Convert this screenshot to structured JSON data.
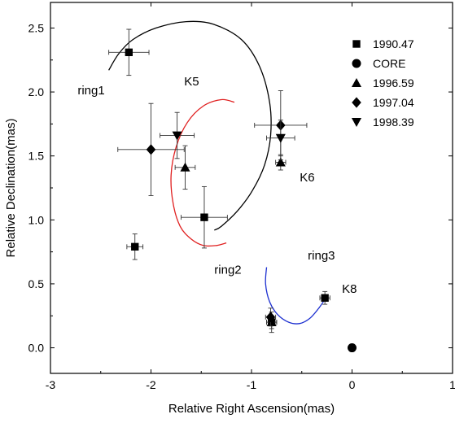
{
  "chart_data": {
    "type": "scatter",
    "title": "",
    "xlabel": "Relative Right Ascension(mas)",
    "ylabel": "Relative Declination(mas)",
    "xlim": [
      -3,
      1
    ],
    "ylim": [
      -0.2,
      2.7
    ],
    "xticks": [
      -3,
      -2,
      -1,
      0,
      1
    ],
    "yticks": [
      0.0,
      0.5,
      1.0,
      1.5,
      2.0,
      2.5
    ],
    "xtick_labels": [
      "-3",
      "-2",
      "-1",
      "0",
      "1"
    ],
    "ytick_labels": [
      "0.0",
      "0.5",
      "1.0",
      "1.5",
      "2.0",
      "2.5"
    ],
    "legend": {
      "placement": "top-right",
      "entries": [
        {
          "label": "1990.47",
          "marker": "square"
        },
        {
          "label": "CORE",
          "marker": "circle"
        },
        {
          "label": "1996.59",
          "marker": "triangle-up"
        },
        {
          "label": "1997.04",
          "marker": "diamond"
        },
        {
          "label": "1998.39",
          "marker": "triangle-down"
        }
      ]
    },
    "series": [
      {
        "name": "1990.47",
        "marker": "square",
        "points": [
          {
            "x": -2.22,
            "y": 2.31,
            "xerr": 0.2,
            "yerr": 0.18
          },
          {
            "x": -1.47,
            "y": 1.02,
            "xerr": 0.23,
            "yerr": 0.24
          },
          {
            "x": -2.16,
            "y": 0.79,
            "xerr": 0.08,
            "yerr": 0.1
          },
          {
            "x": -0.27,
            "y": 0.39,
            "xerr": 0.05,
            "yerr": 0.05
          },
          {
            "x": -0.8,
            "y": 0.2,
            "xerr": 0.05,
            "yerr": 0.05
          }
        ]
      },
      {
        "name": "CORE",
        "marker": "circle",
        "points": [
          {
            "x": 0.0,
            "y": 0.0
          }
        ]
      },
      {
        "name": "1996.59",
        "marker": "triangle-up",
        "points": [
          {
            "x": -1.66,
            "y": 1.41,
            "xerr": 0.1,
            "yerr": 0.17
          },
          {
            "x": -0.71,
            "y": 1.45,
            "xerr": 0.05,
            "yerr": 0.06
          },
          {
            "x": -0.8,
            "y": 0.2,
            "xerr": 0.05,
            "yerr": 0.08
          }
        ]
      },
      {
        "name": "1997.04",
        "marker": "diamond",
        "points": [
          {
            "x": -2.0,
            "y": 1.55,
            "xerr": 0.33,
            "yerr": 0.36
          },
          {
            "x": -0.71,
            "y": 1.74,
            "xerr": 0.26,
            "yerr": 0.27
          },
          {
            "x": -0.81,
            "y": 0.24,
            "xerr": 0.05,
            "yerr": 0.07
          }
        ]
      },
      {
        "name": "1998.39",
        "marker": "triangle-down",
        "points": [
          {
            "x": -1.74,
            "y": 1.66,
            "xerr": 0.17,
            "yerr": 0.18
          },
          {
            "x": -0.71,
            "y": 1.64,
            "xerr": 0.14,
            "yerr": 0.14
          }
        ]
      }
    ],
    "rings": [
      {
        "label": "ring1",
        "color": "#000000",
        "points": [
          [
            -2.42,
            2.17
          ],
          [
            -2.32,
            2.3
          ],
          [
            -2.18,
            2.41
          ],
          [
            -1.95,
            2.5
          ],
          [
            -1.65,
            2.55
          ],
          [
            -1.38,
            2.53
          ],
          [
            -1.1,
            2.41
          ],
          [
            -0.92,
            2.2
          ],
          [
            -0.82,
            1.92
          ],
          [
            -0.81,
            1.66
          ],
          [
            -0.87,
            1.43
          ],
          [
            -0.99,
            1.23
          ],
          [
            -1.14,
            1.07
          ],
          [
            -1.3,
            0.95
          ],
          [
            -1.37,
            0.92
          ]
        ]
      },
      {
        "label": "ring2",
        "color": "#e02020",
        "points": [
          [
            -1.17,
            1.92
          ],
          [
            -1.3,
            1.94
          ],
          [
            -1.48,
            1.89
          ],
          [
            -1.64,
            1.76
          ],
          [
            -1.75,
            1.57
          ],
          [
            -1.8,
            1.35
          ],
          [
            -1.78,
            1.13
          ],
          [
            -1.71,
            0.95
          ],
          [
            -1.6,
            0.85
          ],
          [
            -1.48,
            0.8
          ],
          [
            -1.35,
            0.8
          ],
          [
            -1.25,
            0.82
          ]
        ]
      },
      {
        "label": "ring3",
        "color": "#1c2fd0",
        "points": [
          [
            -0.85,
            0.63
          ],
          [
            -0.86,
            0.5
          ],
          [
            -0.82,
            0.36
          ],
          [
            -0.74,
            0.26
          ],
          [
            -0.63,
            0.2
          ],
          [
            -0.52,
            0.19
          ],
          [
            -0.42,
            0.23
          ],
          [
            -0.33,
            0.31
          ],
          [
            -0.27,
            0.38
          ]
        ]
      }
    ],
    "annotations": [
      {
        "text": "ring1",
        "x": -2.73,
        "y": 1.98
      },
      {
        "text": "K5",
        "x": -1.67,
        "y": 2.05
      },
      {
        "text": "K6",
        "x": -0.52,
        "y": 1.3
      },
      {
        "text": "ring2",
        "x": -1.37,
        "y": 0.58
      },
      {
        "text": "ring3",
        "x": -0.44,
        "y": 0.69
      },
      {
        "text": "K8",
        "x": -0.1,
        "y": 0.43
      }
    ]
  }
}
